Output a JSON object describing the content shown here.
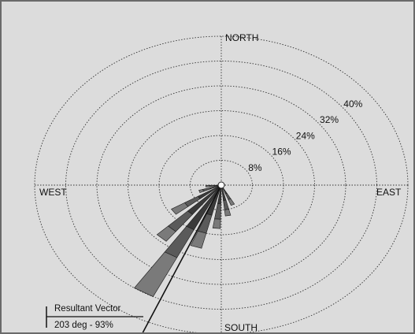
{
  "chart_data": {
    "type": "wind-rose",
    "unit": "%",
    "ring_max": 48,
    "direction_labels": {
      "north": "NORTH",
      "east": "EAST",
      "south": "SOUTH",
      "west": "WEST"
    },
    "ring_labels": [
      "8%",
      "16%",
      "24%",
      "32%",
      "40%"
    ],
    "ring_values": [
      8,
      16,
      24,
      32,
      40,
      48
    ],
    "petal_width_deg": 8,
    "petals": [
      {
        "dir": 155,
        "segments": [
          3,
          2,
          2
        ]
      },
      {
        "dir": 170,
        "segments": [
          5,
          3,
          2
        ]
      },
      {
        "dir": 185,
        "segments": [
          6,
          5,
          3
        ]
      },
      {
        "dir": 198,
        "segments": [
          10,
          6,
          5
        ]
      },
      {
        "dir": 210,
        "segments": [
          16,
          10,
          14
        ]
      },
      {
        "dir": 222,
        "segments": [
          12,
          7,
          4
        ]
      },
      {
        "dir": 235,
        "segments": [
          7,
          4,
          4
        ]
      },
      {
        "dir": 250,
        "segments": [
          3,
          2,
          1
        ]
      },
      {
        "dir": 265,
        "segments": [
          2,
          1,
          1
        ]
      }
    ],
    "resultant_vector": {
      "label": "Resultant Vector",
      "value_text": "203 deg - 93%",
      "direction_deg": 203
    },
    "colors": {
      "background": "#dcdcdc",
      "rings": "#333333",
      "segments": [
        "#3a3a3a",
        "#5a5a5a",
        "#7a7a7a"
      ],
      "outline": "#1a1a1a"
    }
  }
}
